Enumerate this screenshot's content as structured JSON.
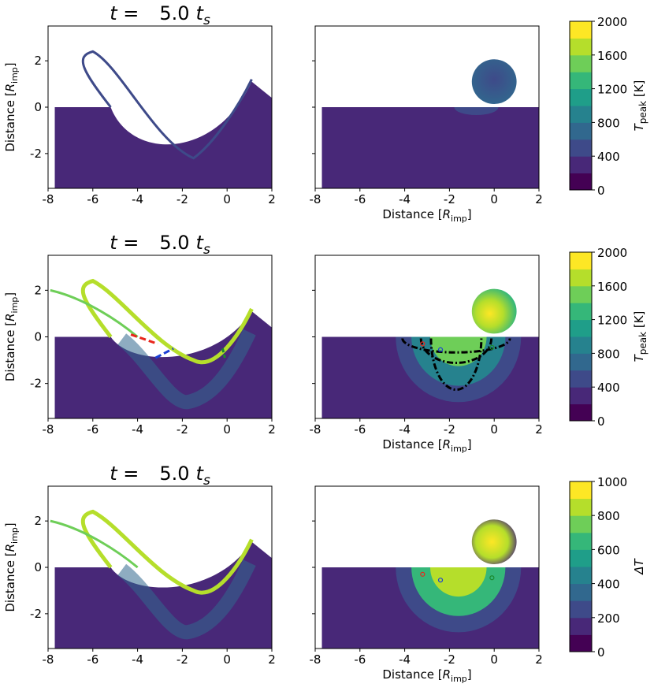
{
  "chart_data": {
    "type": "heatmap",
    "description_free": true,
    "rows": [
      {
        "title": {
          "prefix": "t =",
          "value": "5.0",
          "unit_main": "t",
          "unit_sub": "s"
        },
        "ylabel": {
          "main": "Distance [",
          "italic": "R",
          "sub": "imp",
          "close": "]"
        },
        "xlabel": {
          "main": "Distance [",
          "italic": "R",
          "sub": "imp",
          "close": "]"
        },
        "show_right_xlabel": true,
        "colorbar": {
          "label_main": "T",
          "label_sub": "peak",
          "label_unit": " [K]",
          "ticks": [
            "0",
            "400",
            "800",
            "1200",
            "1600",
            "2000"
          ],
          "range": [
            0,
            2000
          ]
        }
      },
      {
        "title": {
          "prefix": "t =",
          "value": "5.0",
          "unit_main": "t",
          "unit_sub": "s"
        },
        "ylabel": {
          "main": "Distance [",
          "italic": "R",
          "sub": "imp",
          "close": "]"
        },
        "xlabel": {
          "main": "Distance [",
          "italic": "R",
          "sub": "imp",
          "close": "]"
        },
        "show_right_xlabel": true,
        "colorbar": {
          "label_main": "T",
          "label_sub": "peak",
          "label_unit": " [K]",
          "ticks": [
            "0",
            "400",
            "800",
            "1200",
            "1600",
            "2000"
          ],
          "range": [
            0,
            2000
          ]
        }
      },
      {
        "title": {
          "prefix": "t =",
          "value": "5.0",
          "unit_main": "t",
          "unit_sub": "s"
        },
        "ylabel": {
          "main": "Distance [",
          "italic": "R",
          "sub": "imp",
          "close": "]"
        },
        "xlabel": {
          "main": "Distance [",
          "italic": "R",
          "sub": "imp",
          "close": "]"
        },
        "show_right_xlabel": true,
        "colorbar": {
          "label_main": "ΔT",
          "label_sub": "",
          "label_unit": "",
          "ticks": [
            "0",
            "200",
            "400",
            "600",
            "800",
            "1000"
          ],
          "range": [
            0,
            1000
          ]
        }
      }
    ],
    "x_ticks": [
      "-8",
      "-6",
      "-4",
      "-2",
      "0",
      "2"
    ],
    "x_tick_values": [
      -8,
      -6,
      -4,
      -2,
      0,
      2
    ],
    "y_ticks": [
      "-2",
      "0",
      "2"
    ],
    "y_tick_values": [
      -2,
      0,
      2
    ],
    "xlim": [
      -8,
      2
    ],
    "ylim": [
      -3.5,
      3.5
    ],
    "colormap": "viridis",
    "colormap_stops": [
      "#440154",
      "#482878",
      "#3e4a89",
      "#31688e",
      "#26828e",
      "#1f9e89",
      "#35b779",
      "#6ece58",
      "#b5de2b",
      "#fde725"
    ]
  }
}
